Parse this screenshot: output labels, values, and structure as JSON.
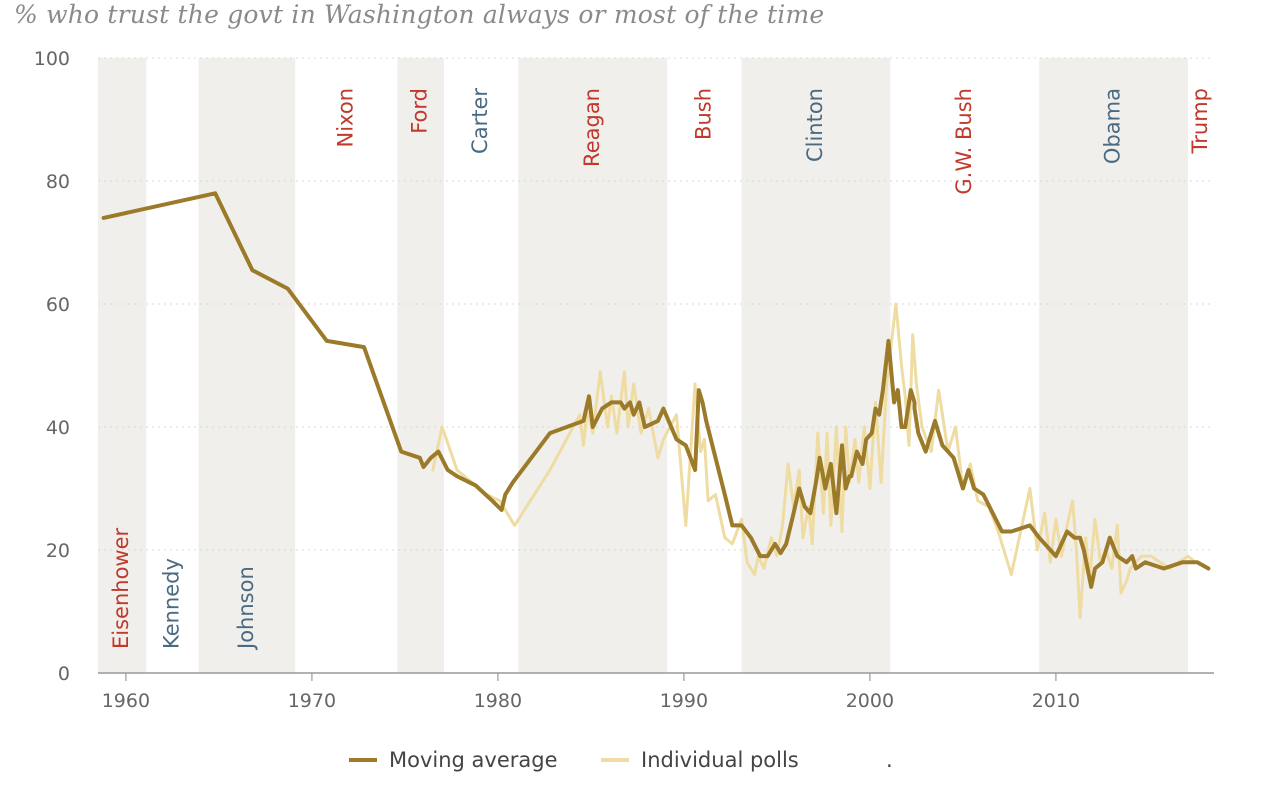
{
  "title": "% who trust the govt in Washington always or most of the time",
  "legend": {
    "moving_average": "Moving average",
    "individual_polls": "Individual polls",
    "trailing_mark": "."
  },
  "colors": {
    "moving_average": "#9b7a29",
    "individual_polls": "#efdca3",
    "republican": "#c0392b",
    "democrat": "#4a6a82",
    "band": "#f1efec",
    "axis_text": "#666666",
    "grid": "#d8d8d8"
  },
  "chart_data": {
    "type": "line",
    "xlim": [
      1958.5,
      2018.5
    ],
    "ylim": [
      0,
      100
    ],
    "x_ticks": [
      1960,
      1970,
      1980,
      1990,
      2000,
      2010
    ],
    "y_ticks": [
      0,
      20,
      40,
      60,
      80,
      100
    ],
    "grid": "horizontal dotted",
    "legend_position": "bottom",
    "presidencies": [
      {
        "name": "Eisenhower",
        "start": 1958.5,
        "end": 1961.1,
        "party": "R",
        "label_pos": "bottom"
      },
      {
        "name": "Kennedy",
        "start": 1961.1,
        "end": 1963.9,
        "party": "D",
        "label_pos": "bottom"
      },
      {
        "name": "Johnson",
        "start": 1963.9,
        "end": 1969.1,
        "party": "D",
        "label_pos": "bottom"
      },
      {
        "name": "Nixon",
        "start": 1969.1,
        "end": 1974.6,
        "party": "R",
        "label_pos": "top"
      },
      {
        "name": "Ford",
        "start": 1974.6,
        "end": 1977.1,
        "party": "R",
        "label_pos": "top"
      },
      {
        "name": "Carter",
        "start": 1977.1,
        "end": 1981.1,
        "party": "D",
        "label_pos": "top"
      },
      {
        "name": "Reagan",
        "start": 1981.1,
        "end": 1989.1,
        "party": "R",
        "label_pos": "top"
      },
      {
        "name": "Bush",
        "start": 1989.1,
        "end": 1993.1,
        "party": "R",
        "label_pos": "top"
      },
      {
        "name": "Clinton",
        "start": 1993.1,
        "end": 2001.1,
        "party": "D",
        "label_pos": "top"
      },
      {
        "name": "G.W. Bush",
        "start": 2001.1,
        "end": 2009.1,
        "party": "R",
        "label_pos": "top"
      },
      {
        "name": "Obama",
        "start": 2009.1,
        "end": 2017.1,
        "party": "D",
        "label_pos": "top"
      },
      {
        "name": "Trump",
        "start": 2017.1,
        "end": 2018.5,
        "party": "R",
        "label_pos": "top"
      }
    ],
    "series": [
      {
        "key": "individual_polls",
        "x": [
          1976.5,
          1977.0,
          1977.8,
          1978.6,
          1979.4,
          1980.1,
          1980.7,
          1980.9,
          1982.8,
          1984.4,
          1984.6,
          1984.8,
          1985.1,
          1985.5,
          1985.9,
          1986.1,
          1986.4,
          1986.8,
          1987.0,
          1987.3,
          1987.7,
          1988.1,
          1988.6,
          1988.9,
          1989.6,
          1990.1,
          1990.6,
          1990.9,
          1991.1,
          1991.3,
          1991.7,
          1992.2,
          1992.6,
          1993.1,
          1993.4,
          1993.8,
          1994.0,
          1994.3,
          1994.7,
          1995.0,
          1995.3,
          1995.6,
          1995.9,
          1996.2,
          1996.4,
          1996.7,
          1996.9,
          1997.2,
          1997.5,
          1997.7,
          1997.9,
          1998.2,
          1998.3,
          1998.5,
          1998.7,
          1998.9,
          1999.2,
          1999.4,
          1999.7,
          2000.0,
          2000.3,
          2000.6,
          2000.9,
          2001.4,
          2001.7,
          2001.9,
          2002.1,
          2002.3,
          2002.5,
          2002.8,
          2003.3,
          2003.7,
          2004.2,
          2004.6,
          2005.0,
          2005.4,
          2005.8,
          2006.4,
          2006.9,
          2007.6,
          2008.6,
          2009.0,
          2009.4,
          2009.7,
          2010.0,
          2010.3,
          2010.6,
          2010.9,
          2011.1,
          2011.3,
          2011.6,
          2011.8,
          2012.1,
          2012.4,
          2012.7,
          2013.0,
          2013.3,
          2013.5,
          2013.8,
          2014.0,
          2014.3,
          2014.6,
          2015.1,
          2015.6,
          2016.1,
          2016.6,
          2017.1,
          2017.5
        ],
        "y": [
          33,
          40,
          33,
          31,
          29,
          28,
          25,
          24,
          33,
          42,
          37,
          43,
          39,
          49,
          40,
          45,
          39,
          49,
          40,
          47,
          39,
          43,
          35,
          38,
          42,
          24,
          47,
          36,
          38,
          28,
          29,
          22,
          21,
          25,
          18,
          16,
          19,
          17,
          22,
          19,
          24,
          34,
          27,
          33,
          22,
          27,
          21,
          39,
          26,
          39,
          24,
          40,
          33,
          23,
          40,
          31,
          38,
          31,
          40,
          30,
          44,
          31,
          47,
          60,
          50,
          45,
          37,
          55,
          47,
          40,
          36,
          46,
          36,
          40,
          30,
          34,
          28,
          27,
          23,
          16,
          30,
          20,
          26,
          18,
          25,
          19,
          24,
          28,
          20,
          9,
          22,
          15,
          25,
          18,
          20,
          17,
          24,
          13,
          15,
          17,
          18,
          19,
          19,
          18,
          17,
          18,
          19,
          18
        ]
      },
      {
        "key": "moving_average",
        "x": [
          1958.8,
          1964.8,
          1966.8,
          1968.7,
          1970.8,
          1972.8,
          1974.8,
          1975.8,
          1976.0,
          1976.4,
          1976.8,
          1977.3,
          1977.8,
          1978.8,
          1979.7,
          1980.2,
          1980.4,
          1980.8,
          1982.8,
          1984.6,
          1984.9,
          1985.1,
          1985.6,
          1986.1,
          1986.6,
          1986.8,
          1987.1,
          1987.3,
          1987.6,
          1987.9,
          1988.6,
          1988.9,
          1989.6,
          1990.1,
          1990.6,
          1990.8,
          1991.0,
          1991.2,
          1991.7,
          1992.2,
          1992.6,
          1993.1,
          1993.6,
          1994.1,
          1994.5,
          1994.9,
          1995.2,
          1995.5,
          1995.9,
          1996.2,
          1996.5,
          1996.8,
          1997.1,
          1997.3,
          1997.6,
          1997.9,
          1998.2,
          1998.5,
          1998.7,
          1998.9,
          1999.0,
          1999.3,
          1999.6,
          1999.8,
          2000.1,
          2000.3,
          2000.5,
          2000.7,
          2001.0,
          2001.3,
          2001.5,
          2001.7,
          2001.9,
          2002.2,
          2002.4,
          2002.4,
          2002.6,
          2003.0,
          2003.5,
          2003.9,
          2004.5,
          2005.0,
          2005.3,
          2005.6,
          2006.1,
          2006.6,
          2007.1,
          2007.6,
          2008.6,
          2009.1,
          2010.0,
          2010.6,
          2011.0,
          2011.3,
          2011.5,
          2011.9,
          2012.1,
          2012.5,
          2012.9,
          2013.3,
          2013.8,
          2014.1,
          2014.3,
          2014.8,
          2015.8,
          2016.8,
          2017.6,
          2018.2
        ],
        "y": [
          74,
          78,
          65.5,
          62.5,
          54,
          53,
          36,
          35,
          33.5,
          35,
          36,
          33,
          32,
          30.5,
          28,
          26.5,
          29,
          31,
          39,
          41,
          45,
          40,
          43,
          44,
          44,
          43,
          44,
          42,
          44,
          40,
          41,
          43,
          38,
          37,
          33,
          46,
          44,
          41,
          35,
          29,
          24,
          24,
          22,
          19,
          19,
          21,
          19.5,
          21,
          26,
          30,
          27,
          26,
          31,
          35,
          30,
          34,
          26,
          37,
          30,
          32,
          32,
          36,
          34,
          38,
          39,
          43,
          42,
          46,
          54,
          44,
          46,
          40,
          40,
          46,
          44,
          43,
          39,
          36,
          41,
          37,
          35,
          30,
          33,
          30,
          29,
          26,
          23,
          23,
          24,
          22,
          19,
          23,
          22,
          22,
          20,
          14,
          17,
          18,
          22,
          19,
          18,
          19,
          17,
          18,
          17,
          18,
          18,
          17
        ]
      }
    ]
  }
}
